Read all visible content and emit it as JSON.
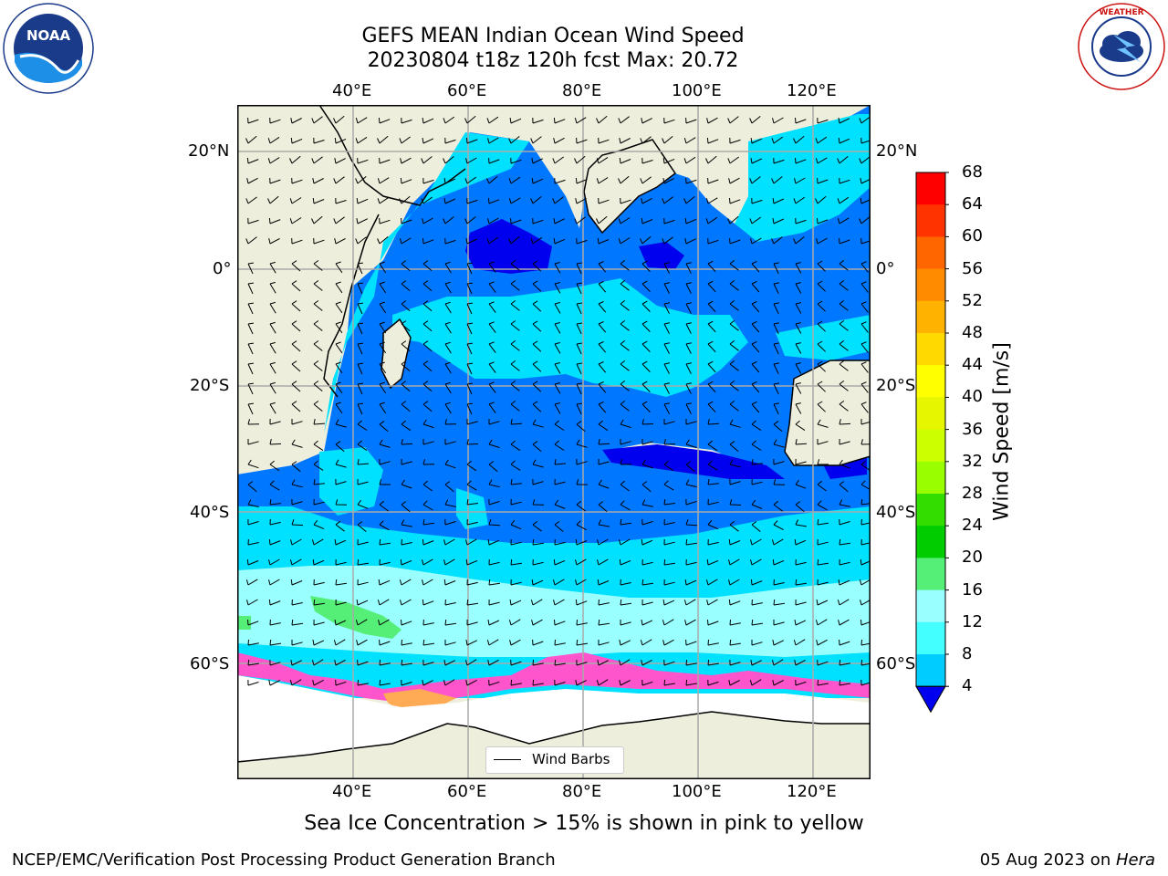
{
  "title_line1": "GEFS MEAN Indian Ocean Wind Speed",
  "title_line2": "20230804 t18z 120h fcst   Max: 20.72",
  "top_lon_labels": [
    "40°E",
    "60°E",
    "80°E",
    "100°E",
    "120°E"
  ],
  "bottom_lon_labels": [
    "40°E",
    "60°E",
    "80°E",
    "100°E",
    "120°E"
  ],
  "left_lat_labels": [
    "20°N",
    "0°",
    "20°S",
    "40°S",
    "60°S"
  ],
  "right_lat_labels": [
    "20°N",
    "0°",
    "20°S",
    "40°S",
    "60°S"
  ],
  "colorbar": {
    "label": "Wind Speed [m/s]",
    "ticks": [
      "68",
      "64",
      "60",
      "56",
      "52",
      "48",
      "44",
      "40",
      "36",
      "32",
      "28",
      "24",
      "20",
      "16",
      "12",
      "8",
      "4"
    ],
    "colors": [
      "#ff0000",
      "#ff3300",
      "#ff6600",
      "#ff8c00",
      "#ffb300",
      "#ffd900",
      "#ffff00",
      "#e6f500",
      "#ccff00",
      "#99ff00",
      "#33dd00",
      "#00cc00",
      "#55ee77",
      "#99ffff",
      "#44ffff",
      "#00ccff",
      "#0077ff"
    ],
    "extend_color": "#0000ee"
  },
  "legend_label": "Wind Barbs",
  "caption": "Sea Ice Concentration > 15% is shown in pink to yellow",
  "footer_left": "NCEP/EMC/Verification Post Processing Product Generation Branch",
  "footer_date": "05 Aug 2023 on ",
  "footer_machine": "Hera",
  "logos": {
    "noaa": {
      "text": "NOAA",
      "ring_text": "NATIONAL OCEANIC AND ATMOSPHERIC ADMINISTRATION · U.S. DEPARTMENT OF COMMERCE"
    },
    "nws": {
      "ring_text": "NATIONAL WEATHER SERVICE"
    }
  },
  "colors": {
    "land": "#eeeedc",
    "ocean_base": "#0077ff",
    "cyan": "#00e0ff",
    "light_cyan": "#99ffff",
    "dark_blue": "#0000ee",
    "green": "#55ee77",
    "ice_pink": "#ff55cc"
  }
}
